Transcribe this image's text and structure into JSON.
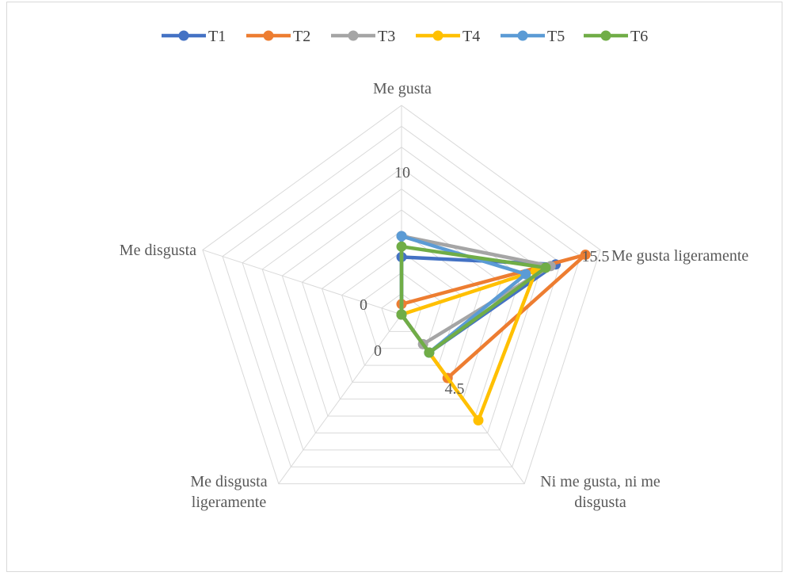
{
  "chart_data": {
    "type": "radar",
    "categories": [
      "Me gusta",
      "Me gusta ligeramente",
      "Ni me gusta, ni me disgusta",
      "Me disgusta ligeramente",
      "Me disgusta"
    ],
    "category_label_lines": [
      [
        "Me gusta"
      ],
      [
        "Me gusta ligeramente"
      ],
      [
        "Ni me gusta, ni me",
        "disgusta"
      ],
      [
        "Me disgusta",
        "ligeramente"
      ],
      [
        "Me disgusta"
      ]
    ],
    "rlim": [
      0,
      20
    ],
    "grid_rings": 10,
    "tick_labels": [
      {
        "text": "10"
      },
      {
        "text": "15.5"
      },
      {
        "text": "0"
      },
      {
        "text": "0"
      },
      {
        "text": "4.5"
      }
    ],
    "legend_position": "top",
    "series": [
      {
        "name": "T1",
        "color": "#4472c4",
        "values": [
          5.5,
          15.5,
          4.5,
          0,
          0
        ]
      },
      {
        "name": "T2",
        "color": "#ed7d31",
        "values": [
          1,
          18.5,
          7.5,
          0,
          0
        ]
      },
      {
        "name": "T3",
        "color": "#a5a5a5",
        "values": [
          7.5,
          15,
          3.5,
          0,
          0
        ]
      },
      {
        "name": "T4",
        "color": "#ffc000",
        "values": [
          0,
          13.5,
          12.5,
          0,
          0
        ]
      },
      {
        "name": "T5",
        "color": "#5b9bd5",
        "values": [
          7.5,
          12.5,
          4.5,
          0,
          0
        ]
      },
      {
        "name": "T6",
        "color": "#70ad47",
        "values": [
          6.5,
          14.5,
          4.5,
          0,
          0
        ]
      }
    ]
  }
}
